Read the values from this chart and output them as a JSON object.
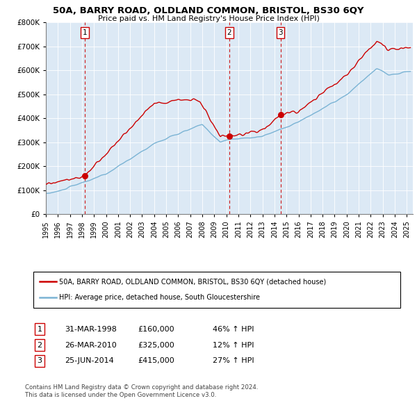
{
  "title": "50A, BARRY ROAD, OLDLAND COMMON, BRISTOL, BS30 6QY",
  "subtitle": "Price paid vs. HM Land Registry's House Price Index (HPI)",
  "legend_line1": "50A, BARRY ROAD, OLDLAND COMMON, BRISTOL, BS30 6QY (detached house)",
  "legend_line2": "HPI: Average price, detached house, South Gloucestershire",
  "transactions": [
    {
      "num": 1,
      "date": "31-MAR-1998",
      "price": 160000,
      "hpi_pct": "46% ↑ HPI",
      "year": 1998.25
    },
    {
      "num": 2,
      "date": "26-MAR-2010",
      "price": 325000,
      "hpi_pct": "12% ↑ HPI",
      "year": 2010.25
    },
    {
      "num": 3,
      "date": "25-JUN-2014",
      "price": 415000,
      "hpi_pct": "27% ↑ HPI",
      "year": 2014.5
    }
  ],
  "footer1": "Contains HM Land Registry data © Crown copyright and database right 2024.",
  "footer2": "This data is licensed under the Open Government Licence v3.0.",
  "red_color": "#cc0000",
  "blue_color": "#7ab3d4",
  "bg_color": "#dce9f5",
  "vline_color": "#cc0000",
  "ylim": [
    0,
    800000
  ],
  "xlim_start": 1995,
  "xlim_end": 2025.5
}
